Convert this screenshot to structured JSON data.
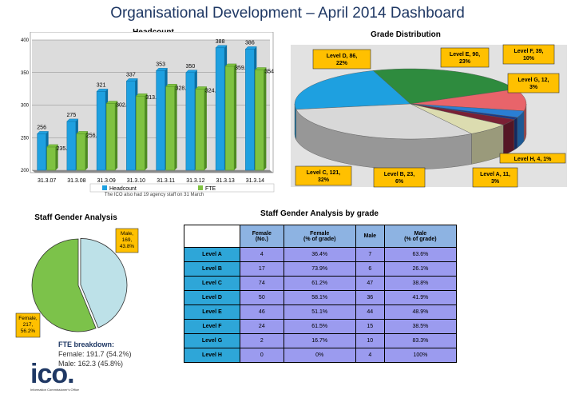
{
  "title": "Organisational Development – April 2014 Dashboard",
  "colors": {
    "headcount": "#1ea0e0",
    "fte": "#7fc241",
    "title": "#1f3864",
    "label_box": "#ffc000"
  },
  "headcount_chart": {
    "title": "Headcount",
    "note": "The ICO also had 19 agency staff on 31 March",
    "legend": [
      "Headcount",
      "FTE"
    ],
    "y_ticks": [
      "200",
      "250",
      "300",
      "350",
      "400"
    ]
  },
  "grade_chart": {
    "title": "Grade Distribution"
  },
  "gender_chart": {
    "title": "Staff Gender Analysis"
  },
  "gender_table": {
    "title": "Staff Gender Analysis by grade",
    "headers": [
      "Female\n(No.)",
      "Female\n(% of grade)",
      "Male",
      "Male\n(% of grade)"
    ],
    "rows": [
      [
        "Level A",
        "4",
        "36.4%",
        "7",
        "63.6%"
      ],
      [
        "Level B",
        "17",
        "73.9%",
        "6",
        "26.1%"
      ],
      [
        "Level C",
        "74",
        "61.2%",
        "47",
        "38.8%"
      ],
      [
        "Level D",
        "50",
        "58.1%",
        "36",
        "41.9%"
      ],
      [
        "Level E",
        "46",
        "51.1%",
        "44",
        "48.9%"
      ],
      [
        "Level F",
        "24",
        "61.5%",
        "15",
        "38.5%"
      ],
      [
        "Level G",
        "2",
        "16.7%",
        "10",
        "83.3%"
      ],
      [
        "Level H",
        "0",
        "0%",
        "4",
        "100%"
      ]
    ]
  },
  "fte": {
    "heading": "FTE breakdown:",
    "female": "Female: 191.7 (54.2%)",
    "male": "Male: 162.3 (45.8%)"
  },
  "logo": {
    "mark": "ico.",
    "sub": "Information Commissioner's Office"
  },
  "chart_data": [
    {
      "type": "bar",
      "title": "Headcount",
      "categories": [
        "31.3.07",
        "31.3.08",
        "31.3.09",
        "31.3.10",
        "31.3.11",
        "31.3.12",
        "31.3.13",
        "31.3.14"
      ],
      "series": [
        {
          "name": "Headcount",
          "values": [
            256,
            275,
            321,
            337,
            353,
            350,
            388,
            386
          ]
        },
        {
          "name": "FTE",
          "values": [
            235.71,
            256.01,
            302.4,
            313.82,
            328.49,
            324.61,
            359.6,
            354
          ]
        }
      ],
      "ylim": [
        200,
        400
      ],
      "grid": true,
      "legend": "bottom"
    },
    {
      "type": "pie",
      "title": "Grade Distribution",
      "slices": [
        {
          "label": "Level D, 86, 22%",
          "value": 86,
          "color": "#1ea0e0"
        },
        {
          "label": "Level E, 90, 23%",
          "value": 90,
          "color": "#2e8b3e"
        },
        {
          "label": "Level F, 39, 10%",
          "value": 39,
          "color": "#e8646a"
        },
        {
          "label": "Level G, 12, 3%",
          "value": 12,
          "color": "#2a7fd4"
        },
        {
          "label": "Level H, 4, 1%",
          "value": 4,
          "color": "#1a3a8a"
        },
        {
          "label": "Level A, 11, 3%",
          "value": 11,
          "color": "#7a2035"
        },
        {
          "label": "Level B, 23, 6%",
          "value": 23,
          "color": "#dcdcb0"
        },
        {
          "label": "Level C, 121, 32%",
          "value": 121,
          "color": "#d8d8d8"
        }
      ]
    },
    {
      "type": "pie",
      "title": "Staff Gender Analysis",
      "slices": [
        {
          "label": "Male, 169, 43.8%",
          "value": 169,
          "color": "#bde1e8"
        },
        {
          "label": "Female, 217, 56.2%",
          "value": 217,
          "color": "#7cc24a"
        }
      ]
    }
  ]
}
